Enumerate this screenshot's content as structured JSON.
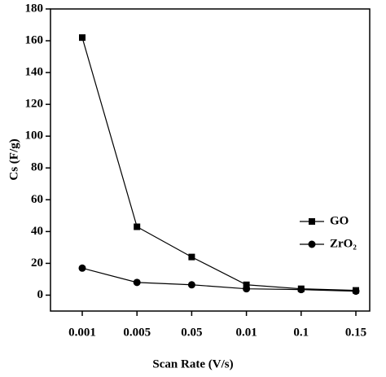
{
  "chart_data": {
    "type": "line",
    "xlabel": "Scan Rate (V/s)",
    "ylabel": "Cs (F/g)",
    "categories": [
      "0.001",
      "0.005",
      "0.05",
      "0.01",
      "0.1",
      "0.15"
    ],
    "series": [
      {
        "name": "GO",
        "color": "#000000",
        "marker": "square",
        "values": [
          162,
          43,
          24,
          6.5,
          4,
          3
        ]
      },
      {
        "name": "ZrO₂",
        "color": "#000000",
        "marker": "circle",
        "values": [
          17,
          8,
          6.5,
          4,
          3.5,
          2.5
        ]
      }
    ],
    "ylim": [
      -10,
      180
    ],
    "yticks": [
      0,
      20,
      40,
      60,
      80,
      100,
      120,
      140,
      160,
      180
    ],
    "grid": false,
    "legend": "right"
  }
}
